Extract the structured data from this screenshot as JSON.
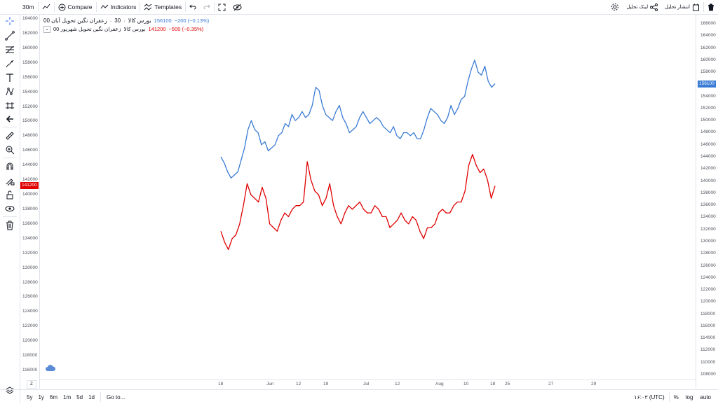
{
  "toolbar": {
    "interval": "30m",
    "compare": "Compare",
    "indicators": "Indicators",
    "templates": "Templates",
    "link_label": "لینک تحلیل",
    "publish_label": "انتشار تحلیل"
  },
  "legend": {
    "main_symbol": "زعفران نگین تحویل آبان 00",
    "main_interval": "30",
    "main_exchange": "بورس کالا",
    "main_price": "156100",
    "main_change": "−200 (−0.13%)",
    "compare_symbol": "زعفران نگین تحویل شهریور 00",
    "compare_exchange": "بورس کالا",
    "compare_price": "141200",
    "compare_change": "−500 (−0.35%)"
  },
  "colors": {
    "main_series": "#3a7bd5",
    "compare_series": "#e00000",
    "main_tag": "#3a7bd5",
    "compare_tag": "#e00000"
  },
  "axes": {
    "right_ticks": [
      "166000",
      "164000",
      "162000",
      "160000",
      "158000",
      "156000",
      "154000",
      "152000",
      "150000",
      "148000",
      "146000",
      "144000",
      "142000",
      "140000",
      "138000",
      "136000",
      "134000",
      "132000",
      "130000",
      "128000",
      "126000",
      "124000",
      "122000",
      "120000",
      "118000",
      "116000",
      "114000",
      "112000",
      "110000",
      "108000"
    ],
    "left_ticks": [
      "164000",
      "162000",
      "160000",
      "158000",
      "156000",
      "154000",
      "152000",
      "150000",
      "148000",
      "146000",
      "144000",
      "142000",
      "140000",
      "138000",
      "136000",
      "134000",
      "132000",
      "130000",
      "128000",
      "126000",
      "124000",
      "122000",
      "120000",
      "118000",
      "116000"
    ],
    "time_ticks": [
      "18",
      "Jun",
      "12",
      "19",
      "Jul",
      "12",
      "Aug",
      "10",
      "18",
      "25",
      "27",
      "29"
    ],
    "right_tag": "156100",
    "left_tag": "141200"
  },
  "bottombar": {
    "ranges": [
      "5y",
      "1y",
      "6m",
      "1m",
      "5d",
      "1d"
    ],
    "goto": "Go to...",
    "time": "۱۶:۰۳ (UTC)",
    "percent": "%",
    "log": "log",
    "auto": "auto"
  },
  "chart_data": {
    "type": "line",
    "series": [
      {
        "name": "زعفران نگین تحویل آبان 00",
        "axis": "right",
        "values": [
          144000,
          143000,
          141500,
          140500,
          141000,
          141500,
          143500,
          145500,
          148500,
          150000,
          148500,
          148000,
          146000,
          146500,
          145000,
          145500,
          146000,
          147500,
          148000,
          149500,
          149000,
          151000,
          150000,
          150500,
          151500,
          150500,
          151000,
          152500,
          155500,
          155000,
          152500,
          151000,
          150500,
          150000,
          151500,
          152500,
          150500,
          149500,
          148000,
          148500,
          149000,
          150500,
          151500,
          150500,
          149500,
          150000,
          150500,
          150000,
          149000,
          148500,
          148000,
          149000,
          147500,
          147000,
          148000,
          148000,
          147500,
          148000,
          147000,
          147000,
          148500,
          150500,
          152000,
          151500,
          151000,
          150000,
          149500,
          150500,
          152500,
          151000,
          152000,
          153500,
          154000,
          156500,
          158500,
          160000,
          158000,
          157500,
          159000,
          156500,
          155500,
          156100
        ]
      },
      {
        "name": "زعفران نگین تحویل شهریور 00",
        "axis": "left",
        "values": [
          135000,
          133500,
          132500,
          134000,
          134500,
          136000,
          138500,
          141500,
          140000,
          139500,
          139000,
          141000,
          139500,
          136000,
          135500,
          135000,
          136500,
          137500,
          137000,
          138000,
          138500,
          138500,
          139000,
          144500,
          142000,
          140500,
          140000,
          138500,
          139500,
          141500,
          138500,
          137000,
          136000,
          137500,
          138500,
          138000,
          138500,
          139000,
          138000,
          137500,
          137500,
          138500,
          138000,
          137000,
          137000,
          135500,
          136000,
          136500,
          137500,
          136500,
          136000,
          137000,
          136500,
          135000,
          134000,
          135500,
          135500,
          136000,
          137500,
          138000,
          137500,
          137500,
          138500,
          139000,
          139000,
          140500,
          144000,
          145500,
          144000,
          143000,
          143500,
          142000,
          139500,
          141200
        ]
      }
    ],
    "x_range": [
      "18",
      "Aug 20"
    ],
    "grid": false,
    "legend": "top-left"
  }
}
